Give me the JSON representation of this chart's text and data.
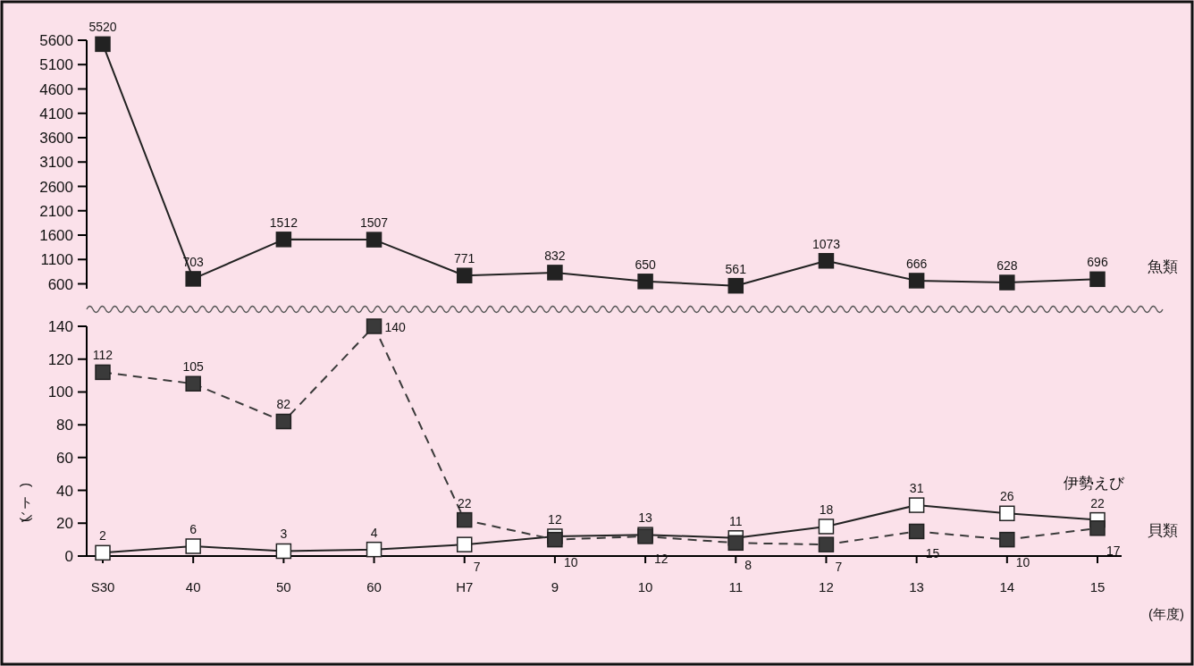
{
  "chart_data": [
    {
      "type": "line",
      "categories": [
        null,
        null,
        null,
        null,
        null,
        null,
        null,
        null,
        null,
        null,
        null,
        null
      ],
      "ylim": [
        500,
        5600
      ],
      "yticks": [
        600,
        1100,
        1600,
        2100,
        2600,
        3100,
        3600,
        4100,
        4600,
        5100,
        5600
      ],
      "tick_labels": "y",
      "marker": "square",
      "data_labels": true,
      "series": [
        {
          "name": "魚類",
          "color": "#222222",
          "line_style": "solid",
          "values": [
            5520,
            703,
            1512,
            1507,
            771,
            832,
            650,
            561,
            1073,
            666,
            628,
            696
          ]
        }
      ]
    },
    {
      "type": "line",
      "categories": [
        "S30",
        "40",
        "50",
        "60",
        "H7",
        "9",
        "10",
        "11",
        "12",
        "13",
        "14",
        "15"
      ],
      "xlabel": "(年度)",
      "ylabel": "(トン)",
      "ylim": [
        0,
        140
      ],
      "yticks": [
        0,
        20,
        40,
        60,
        80,
        100,
        120,
        140
      ],
      "marker": "square",
      "data_labels": true,
      "series": [
        {
          "name": "伊勢えび",
          "color": "#222222",
          "line_style": "solid",
          "values": [
            2,
            6,
            3,
            4,
            7,
            12,
            13,
            11,
            18,
            31,
            26,
            22
          ]
        },
        {
          "name": "貝類",
          "color": "#3a3a3a",
          "line_style": "dashed",
          "values": [
            112,
            105,
            82,
            140,
            22,
            10,
            12,
            8,
            7,
            15,
            10,
            17
          ]
        }
      ]
    }
  ]
}
